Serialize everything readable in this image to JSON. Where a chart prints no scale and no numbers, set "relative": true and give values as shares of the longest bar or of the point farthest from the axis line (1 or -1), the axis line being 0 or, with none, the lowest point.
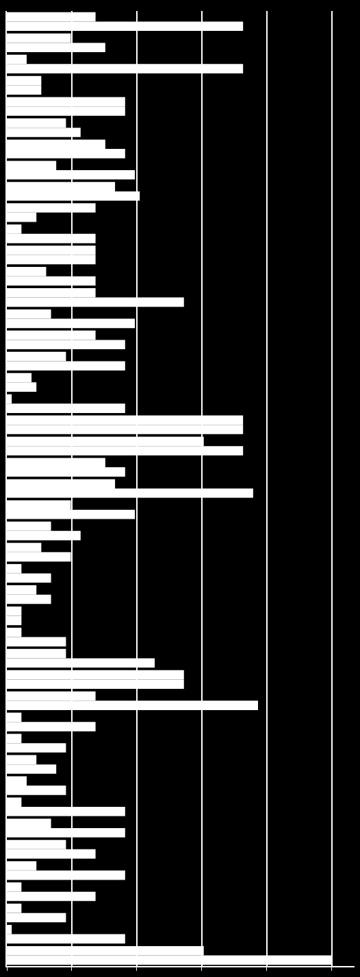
{
  "chart_data": {
    "type": "bar",
    "orientation": "horizontal",
    "relative": true,
    "grid": "x",
    "legend": false,
    "tick_labels": false,
    "categories": [
      null,
      null,
      null,
      null,
      null,
      null,
      null,
      null,
      null,
      null,
      null,
      null,
      null,
      null,
      null,
      null,
      null,
      null,
      null,
      null,
      null,
      null,
      null,
      null,
      null,
      null,
      null,
      null,
      null,
      null,
      null,
      null,
      null,
      null,
      null,
      null,
      null,
      null,
      null,
      null,
      null,
      null,
      null,
      null,
      null
    ],
    "series": [
      {
        "color": "#ffffff",
        "values": [
          0.273,
          0.197,
          0.061,
          0.106,
          0.364,
          0.182,
          0.303,
          0.152,
          0.333,
          0.273,
          0.045,
          0.273,
          0.121,
          0.273,
          0.136,
          0.273,
          0.182,
          0.076,
          0.015,
          0.727,
          0.606,
          0.303,
          0.333,
          0.197,
          0.136,
          0.106,
          0.045,
          0.091,
          0.045,
          0.045,
          0.182,
          0.545,
          0.273,
          0.045,
          0.045,
          0.091,
          0.061,
          0.045,
          0.136,
          0.182,
          0.091,
          0.045,
          0.045,
          0.015,
          0.606
        ]
      },
      {
        "color": "#ffffff",
        "values": [
          0.727,
          0.303,
          0.727,
          0.106,
          0.364,
          0.227,
          0.364,
          0.394,
          0.409,
          0.091,
          0.273,
          0.273,
          0.273,
          0.545,
          0.394,
          0.364,
          0.364,
          0.091,
          0.364,
          0.727,
          0.727,
          0.364,
          0.758,
          0.394,
          0.227,
          0.197,
          0.136,
          0.136,
          0.045,
          0.182,
          0.455,
          0.545,
          0.773,
          0.273,
          0.182,
          0.152,
          0.182,
          0.364,
          0.364,
          0.273,
          0.364,
          0.273,
          0.182,
          0.364,
          1
        ]
      }
    ]
  }
}
